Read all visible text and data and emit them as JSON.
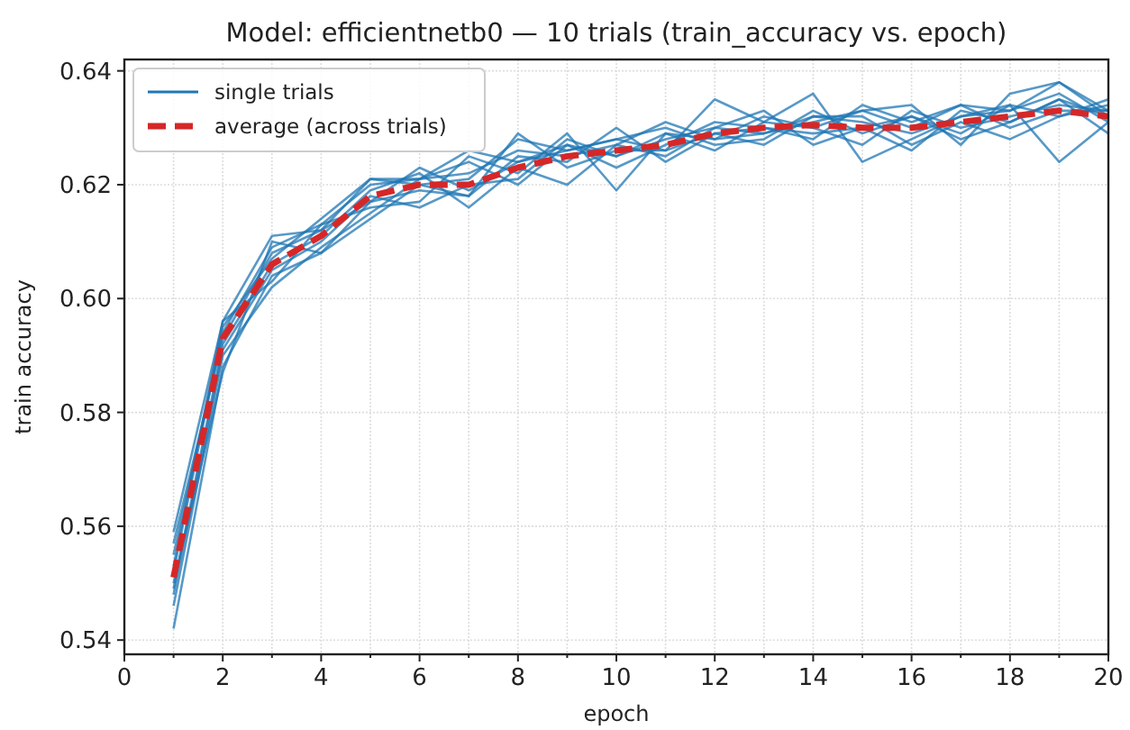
{
  "chart_data": {
    "type": "line",
    "title": "Model: efficientnetb0 — 10 trials (train_accuracy vs. epoch)",
    "xlabel": "epoch",
    "ylabel": "train accuracy",
    "x": [
      1,
      2,
      3,
      4,
      5,
      6,
      7,
      8,
      9,
      10,
      11,
      12,
      13,
      14,
      15,
      16,
      17,
      18,
      19,
      20
    ],
    "xlim": [
      0,
      20
    ],
    "xticks": [
      0,
      {
        "value": 1,
        "label": null
      },
      2,
      {
        "value": 3,
        "label": null
      },
      4,
      {
        "value": 5,
        "label": null
      },
      6,
      {
        "value": 7,
        "label": null
      },
      8,
      {
        "value": 9,
        "label": null
      },
      10,
      {
        "value": 11,
        "label": null
      },
      12,
      {
        "value": 13,
        "label": null
      },
      14,
      {
        "value": 15,
        "label": null
      },
      16,
      {
        "value": 17,
        "label": null
      },
      18,
      {
        "value": 19,
        "label": null
      },
      20
    ],
    "ylim": [
      0.5375,
      0.642
    ],
    "yticks": [
      0.54,
      0.56,
      0.58,
      {
        "value": 0.6,
        "label": "0.60"
      },
      0.62,
      0.64
    ],
    "grid": true,
    "legend": "top left",
    "series": [
      {
        "name": "single trials",
        "color": "#1f77b4",
        "values": [
          0.559,
          0.596,
          0.611,
          0.612,
          0.621,
          0.621,
          0.626,
          0.624,
          0.627,
          0.625,
          0.628,
          0.63,
          0.629,
          0.631,
          0.633,
          0.63,
          0.634,
          0.633,
          0.638,
          0.633
        ]
      },
      {
        "color": "#1f77b4",
        "values": [
          0.542,
          0.588,
          0.604,
          0.608,
          0.614,
          0.62,
          0.618,
          0.629,
          0.623,
          0.626,
          0.626,
          0.635,
          0.631,
          0.636,
          0.624,
          0.628,
          0.632,
          0.634,
          0.624,
          0.631
        ]
      },
      {
        "color": "#1f77b4",
        "values": [
          0.555,
          0.594,
          0.609,
          0.613,
          0.616,
          0.617,
          0.625,
          0.622,
          0.629,
          0.619,
          0.629,
          0.628,
          0.632,
          0.63,
          0.633,
          0.634,
          0.627,
          0.636,
          0.638,
          0.632
        ]
      },
      {
        "color": "#1f77b4",
        "values": [
          0.549,
          0.592,
          0.606,
          0.611,
          0.619,
          0.622,
          0.616,
          0.623,
          0.62,
          0.627,
          0.625,
          0.63,
          0.633,
          0.627,
          0.63,
          0.626,
          0.633,
          0.631,
          0.635,
          0.629
        ]
      },
      {
        "color": "#1f77b4",
        "values": [
          0.552,
          0.595,
          0.607,
          0.614,
          0.621,
          0.62,
          0.621,
          0.628,
          0.626,
          0.628,
          0.63,
          0.627,
          0.628,
          0.633,
          0.629,
          0.632,
          0.629,
          0.634,
          0.632,
          0.634
        ]
      },
      {
        "color": "#1f77b4",
        "values": [
          0.546,
          0.59,
          0.602,
          0.609,
          0.615,
          0.621,
          0.624,
          0.62,
          0.627,
          0.623,
          0.627,
          0.631,
          0.63,
          0.628,
          0.634,
          0.631,
          0.634,
          0.63,
          0.633,
          0.633
        ]
      },
      {
        "color": "#1f77b4",
        "values": [
          0.557,
          0.593,
          0.608,
          0.612,
          0.617,
          0.619,
          0.618,
          0.625,
          0.624,
          0.63,
          0.624,
          0.629,
          0.627,
          0.632,
          0.631,
          0.629,
          0.632,
          0.633,
          0.636,
          0.631
        ]
      },
      {
        "color": "#1f77b4",
        "values": [
          0.548,
          0.591,
          0.605,
          0.61,
          0.618,
          0.616,
          0.62,
          0.621,
          0.628,
          0.625,
          0.629,
          0.626,
          0.631,
          0.63,
          0.627,
          0.633,
          0.63,
          0.632,
          0.634,
          0.633
        ]
      },
      {
        "color": "#1f77b4",
        "values": [
          0.553,
          0.596,
          0.603,
          0.613,
          0.62,
          0.621,
          0.622,
          0.626,
          0.625,
          0.627,
          0.631,
          0.628,
          0.629,
          0.632,
          0.632,
          0.627,
          0.631,
          0.628,
          0.632,
          0.635
        ]
      },
      {
        "color": "#1f77b4",
        "values": [
          0.55,
          0.587,
          0.61,
          0.608,
          0.617,
          0.623,
          0.619,
          0.624,
          0.626,
          0.628,
          0.626,
          0.629,
          0.63,
          0.629,
          0.63,
          0.632,
          0.628,
          0.631,
          0.635,
          0.632
        ]
      },
      {
        "name": "average (across trials)",
        "color": "#d62728",
        "line_style": "dashed",
        "values": [
          0.551,
          0.593,
          0.606,
          0.611,
          0.618,
          0.62,
          0.62,
          0.623,
          0.625,
          0.626,
          0.627,
          0.629,
          0.63,
          0.6305,
          0.63,
          0.63,
          0.631,
          0.632,
          0.633,
          0.632
        ]
      }
    ]
  }
}
